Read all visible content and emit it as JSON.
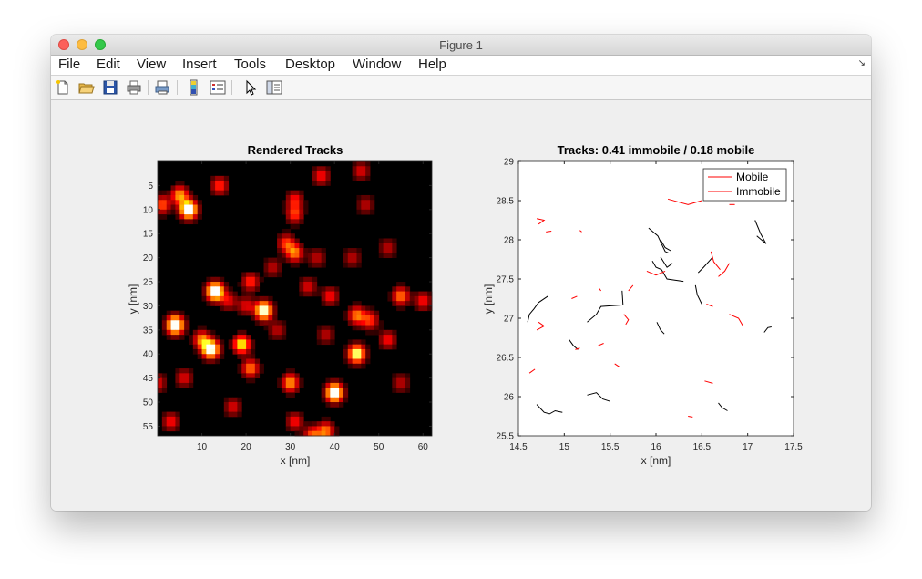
{
  "window": {
    "title": "Figure 1"
  },
  "menu": [
    "File",
    "Edit",
    "View",
    "Insert",
    "Tools",
    "Desktop",
    "Window",
    "Help"
  ],
  "toolbar": [
    "new-figure-icon",
    "open-file-icon",
    "save-icon",
    "print-icon",
    "print-preview-icon",
    "colorbar-icon",
    "legend-icon",
    "pointer-icon",
    "property-inspector-icon"
  ],
  "chart_data": [
    {
      "type": "heatmap",
      "title": "Rendered Tracks",
      "xlabel": "x [nm]",
      "ylabel": "y [nm]",
      "xlim": [
        0,
        62
      ],
      "ylim": [
        57,
        0
      ],
      "xticks": [
        10,
        20,
        30,
        40,
        50,
        60
      ],
      "yticks": [
        5,
        10,
        15,
        20,
        25,
        30,
        35,
        40,
        45,
        50,
        55
      ],
      "colormap": "hot",
      "spots": [
        [
          7,
          10,
          1.0
        ],
        [
          5,
          7,
          0.55
        ],
        [
          1,
          9,
          0.45
        ],
        [
          14,
          5,
          0.4
        ],
        [
          13,
          27,
          1.0
        ],
        [
          24,
          31,
          0.95
        ],
        [
          4,
          34,
          1.0
        ],
        [
          12,
          39,
          0.95
        ],
        [
          19,
          38,
          0.7
        ],
        [
          21,
          25,
          0.4
        ],
        [
          10,
          37,
          0.5
        ],
        [
          21,
          43,
          0.5
        ],
        [
          30,
          46,
          0.55
        ],
        [
          40,
          48,
          1.0
        ],
        [
          45,
          40,
          0.85
        ],
        [
          31,
          8,
          0.35
        ],
        [
          37,
          3,
          0.35
        ],
        [
          46,
          2,
          0.3
        ],
        [
          31,
          11,
          0.4
        ],
        [
          31,
          19,
          0.5
        ],
        [
          29,
          17,
          0.4
        ],
        [
          34,
          26,
          0.3
        ],
        [
          39,
          28,
          0.35
        ],
        [
          45,
          32,
          0.5
        ],
        [
          48,
          33,
          0.4
        ],
        [
          55,
          28,
          0.5
        ],
        [
          60,
          29,
          0.35
        ],
        [
          52,
          37,
          0.35
        ],
        [
          31,
          54,
          0.35
        ],
        [
          38,
          56,
          0.5
        ],
        [
          35,
          57,
          0.45
        ],
        [
          3,
          54,
          0.35
        ],
        [
          17,
          51,
          0.3
        ],
        [
          0,
          46,
          0.3
        ],
        [
          6,
          45,
          0.3
        ],
        [
          44,
          20,
          0.25
        ],
        [
          52,
          18,
          0.25
        ],
        [
          26,
          22,
          0.25
        ],
        [
          36,
          20,
          0.25
        ],
        [
          20,
          30,
          0.3
        ],
        [
          16,
          29,
          0.3
        ],
        [
          47,
          9,
          0.25
        ],
        [
          55,
          46,
          0.25
        ],
        [
          27,
          35,
          0.25
        ],
        [
          38,
          36,
          0.25
        ]
      ]
    },
    {
      "type": "line",
      "title": "Tracks: 0.41 immobile / 0.18 mobile",
      "xlabel": "x [nm]",
      "ylabel": "y [nm]",
      "xlim": [
        14.5,
        17.5
      ],
      "ylim": [
        25.5,
        29
      ],
      "xticks": [
        "14.5",
        "15",
        "15.5",
        "16",
        "16.5",
        "17",
        "17.5"
      ],
      "yticks": [
        "25.5",
        "26",
        "26.5",
        "27",
        "27.5",
        "28",
        "28.5",
        "29"
      ],
      "legend": [
        "Mobile",
        "Immobile"
      ],
      "legend_position": "top-right",
      "colors": {
        "mobile": "#000000",
        "immobile": "#ff0000"
      },
      "series": [
        {
          "name": "Mobile",
          "color": "#000000",
          "tracks": [
            [
              [
                15.92,
                28.15
              ],
              [
                16.02,
                28.05
              ],
              [
                16.06,
                27.95
              ],
              [
                16.1,
                27.85
              ],
              [
                16.14,
                27.83
              ]
            ],
            [
              [
                16.05,
                28.0
              ],
              [
                16.1,
                27.9
              ],
              [
                16.16,
                27.86
              ]
            ],
            [
              [
                15.96,
                27.73
              ],
              [
                16.0,
                27.65
              ],
              [
                16.06,
                27.62
              ],
              [
                16.12,
                27.5
              ],
              [
                16.3,
                27.47
              ]
            ],
            [
              [
                16.05,
                27.78
              ],
              [
                16.12,
                27.65
              ],
              [
                16.18,
                27.7
              ]
            ],
            [
              [
                16.62,
                27.78
              ],
              [
                16.52,
                27.65
              ],
              [
                16.46,
                27.58
              ]
            ],
            [
              [
                16.43,
                27.42
              ],
              [
                16.45,
                27.3
              ],
              [
                16.5,
                27.18
              ]
            ],
            [
              [
                17.08,
                28.25
              ],
              [
                17.14,
                28.08
              ],
              [
                17.2,
                27.95
              ],
              [
                17.1,
                28.05
              ]
            ],
            [
              [
                17.18,
                26.82
              ],
              [
                17.22,
                26.88
              ],
              [
                17.26,
                26.89
              ]
            ],
            [
              [
                16.01,
                26.95
              ],
              [
                16.05,
                26.85
              ],
              [
                16.09,
                26.8
              ]
            ],
            [
              [
                15.63,
                27.35
              ],
              [
                15.64,
                27.17
              ],
              [
                15.4,
                27.15
              ],
              [
                15.35,
                27.05
              ],
              [
                15.25,
                26.95
              ]
            ],
            [
              [
                14.6,
                26.95
              ],
              [
                14.62,
                27.05
              ],
              [
                14.67,
                27.12
              ],
              [
                14.72,
                27.2
              ],
              [
                14.82,
                27.28
              ]
            ],
            [
              [
                15.05,
                26.73
              ],
              [
                15.1,
                26.65
              ],
              [
                15.15,
                26.6
              ]
            ],
            [
              [
                14.7,
                25.9
              ],
              [
                14.78,
                25.8
              ],
              [
                14.84,
                25.78
              ],
              [
                14.9,
                25.82
              ],
              [
                14.98,
                25.8
              ]
            ],
            [
              [
                15.25,
                26.02
              ],
              [
                15.35,
                26.05
              ],
              [
                15.42,
                25.97
              ],
              [
                15.5,
                25.94
              ]
            ],
            [
              [
                16.68,
                25.92
              ],
              [
                16.72,
                25.86
              ],
              [
                16.78,
                25.82
              ]
            ]
          ]
        },
        {
          "name": "Immobile",
          "color": "#ff0000",
          "tracks": [
            [
              [
                14.7,
                28.27
              ],
              [
                14.78,
                28.25
              ],
              [
                14.72,
                28.2
              ]
            ],
            [
              [
                14.8,
                28.1
              ],
              [
                14.86,
                28.11
              ]
            ],
            [
              [
                15.17,
                28.12
              ],
              [
                15.19,
                28.1
              ]
            ],
            [
              [
                16.13,
                28.52
              ],
              [
                16.25,
                28.48
              ],
              [
                16.35,
                28.45
              ],
              [
                16.5,
                28.5
              ]
            ],
            [
              [
                16.8,
                28.45
              ],
              [
                16.86,
                28.45
              ]
            ],
            [
              [
                16.6,
                27.85
              ],
              [
                16.63,
                27.72
              ],
              [
                16.7,
                27.62
              ]
            ],
            [
              [
                16.68,
                27.53
              ],
              [
                16.75,
                27.6
              ],
              [
                16.8,
                27.7
              ]
            ],
            [
              [
                16.55,
                27.18
              ],
              [
                16.62,
                27.15
              ]
            ],
            [
              [
                16.8,
                27.05
              ],
              [
                16.9,
                27.0
              ],
              [
                16.95,
                26.9
              ]
            ],
            [
              [
                15.9,
                27.6
              ],
              [
                16.0,
                27.55
              ],
              [
                16.1,
                27.6
              ]
            ],
            [
              [
                15.75,
                27.42
              ],
              [
                15.7,
                27.35
              ]
            ],
            [
              [
                15.38,
                27.38
              ],
              [
                15.4,
                27.35
              ]
            ],
            [
              [
                15.08,
                27.25
              ],
              [
                15.14,
                27.28
              ]
            ],
            [
              [
                15.65,
                27.05
              ],
              [
                15.7,
                26.98
              ],
              [
                15.67,
                26.92
              ]
            ],
            [
              [
                14.72,
                26.95
              ],
              [
                14.78,
                26.9
              ],
              [
                14.7,
                26.85
              ]
            ],
            [
              [
                15.37,
                26.65
              ],
              [
                15.43,
                26.68
              ]
            ],
            [
              [
                15.55,
                26.42
              ],
              [
                15.6,
                26.38
              ]
            ],
            [
              [
                14.62,
                26.3
              ],
              [
                14.68,
                26.35
              ]
            ],
            [
              [
                16.53,
                26.2
              ],
              [
                16.62,
                26.17
              ]
            ],
            [
              [
                16.35,
                25.75
              ],
              [
                16.4,
                25.74
              ]
            ],
            [
              [
                15.17,
                26.62
              ],
              [
                15.12,
                26.6
              ]
            ]
          ]
        }
      ]
    }
  ]
}
